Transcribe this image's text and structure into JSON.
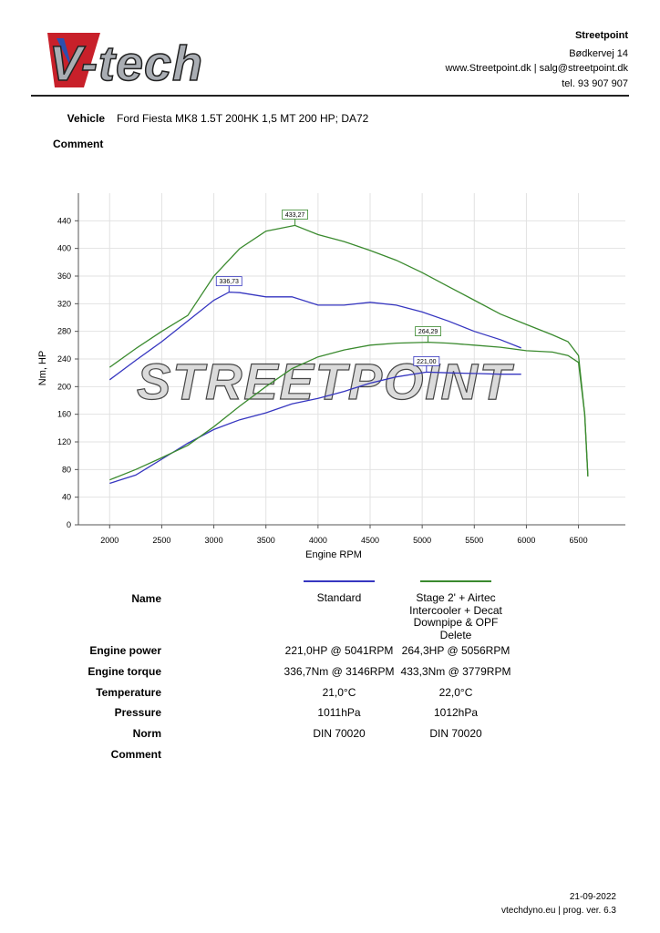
{
  "logo": "V-tech",
  "header": {
    "company": "Streetpoint",
    "address": "Bødkervej 14",
    "web": "www.Streetpoint.dk | salg@streetpoint.dk",
    "phone": "tel. 93 907 907"
  },
  "vehicle": {
    "label": "Vehicle",
    "value": "Ford Fiesta MK8 1.5T 200HK 1,5 MT 200 HP; DA72"
  },
  "comment_label": "Comment",
  "chart_data": {
    "type": "line",
    "watermark": "STREETPOINT",
    "x_label": "Engine RPM",
    "y_label": "Nm, HP",
    "xlim": [
      1700,
      6950
    ],
    "ylim": [
      0,
      480
    ],
    "xticks": [
      2000,
      2500,
      3000,
      3500,
      4000,
      4500,
      5000,
      5500,
      6000,
      6500
    ],
    "yticks": [
      0,
      40,
      80,
      120,
      160,
      200,
      240,
      280,
      320,
      360,
      400,
      440
    ],
    "grid": true,
    "series": [
      {
        "name": "Standard",
        "color": "#3636c0",
        "torque_x": [
          2000,
          2250,
          2500,
          2750,
          3000,
          3146,
          3250,
          3500,
          3750,
          4000,
          4250,
          4500,
          4750,
          5000,
          5250,
          5500,
          5750,
          5950
        ],
        "torque": [
          210,
          238,
          265,
          295,
          325,
          336.73,
          336,
          330,
          330,
          318,
          318,
          322,
          318,
          308,
          295,
          280,
          268,
          256
        ],
        "power_x": [
          2000,
          2250,
          2500,
          2750,
          3000,
          3250,
          3500,
          3750,
          4000,
          4250,
          4500,
          4750,
          5041,
          5250,
          5500,
          5750,
          5950
        ],
        "power": [
          60,
          72,
          95,
          118,
          138,
          152,
          162,
          175,
          183,
          193,
          205,
          214,
          221,
          220,
          219,
          218,
          218
        ],
        "peaks": [
          {
            "x": 3146,
            "value": 336.73,
            "label": "336,73"
          },
          {
            "x": 5041,
            "value": 221,
            "label": "221,00"
          }
        ]
      },
      {
        "name": "Stage 2' + Airtec Intercooler + Decat Downpipe & OPF Delete",
        "color": "#3a8a2e",
        "torque_x": [
          2000,
          2250,
          2500,
          2750,
          3000,
          3250,
          3500,
          3779,
          4000,
          4250,
          4500,
          4750,
          5000,
          5250,
          5500,
          5750,
          6000,
          6250,
          6400,
          6500,
          6560,
          6590
        ],
        "torque": [
          228,
          255,
          280,
          303,
          360,
          400,
          425,
          433.27,
          420,
          410,
          397,
          383,
          365,
          345,
          325,
          305,
          290,
          275,
          265,
          245,
          160,
          70
        ],
        "power_x": [
          2000,
          2250,
          2500,
          2750,
          3000,
          3250,
          3500,
          3750,
          4000,
          4250,
          4500,
          4750,
          5056,
          5250,
          5500,
          5750,
          6000,
          6250,
          6400,
          6500,
          6560,
          6590
        ],
        "power": [
          65,
          80,
          97,
          115,
          142,
          172,
          200,
          226,
          243,
          253,
          260,
          263,
          264.29,
          263,
          260,
          257,
          252,
          250,
          245,
          235,
          160,
          70
        ],
        "peaks": [
          {
            "x": 3779,
            "value": 433.27,
            "label": "433,27"
          },
          {
            "x": 5056,
            "value": 264.29,
            "label": "264,29"
          }
        ]
      }
    ]
  },
  "table": {
    "name_label": "Name",
    "rows": [
      [
        "Engine power",
        "221,0HP @ 5041RPM",
        "264,3HP @ 5056RPM"
      ],
      [
        "Engine torque",
        "336,7Nm @ 3146RPM",
        "433,3Nm @ 3779RPM"
      ],
      [
        "Temperature",
        "21,0°C",
        "22,0°C"
      ],
      [
        "Pressure",
        "1011hPa",
        "1012hPa"
      ],
      [
        "Norm",
        "DIN 70020",
        "DIN 70020"
      ]
    ],
    "comment_label": "Comment"
  },
  "footer": {
    "date": "21-09-2022",
    "version": "vtechdyno.eu | prog. ver. 6.3"
  }
}
